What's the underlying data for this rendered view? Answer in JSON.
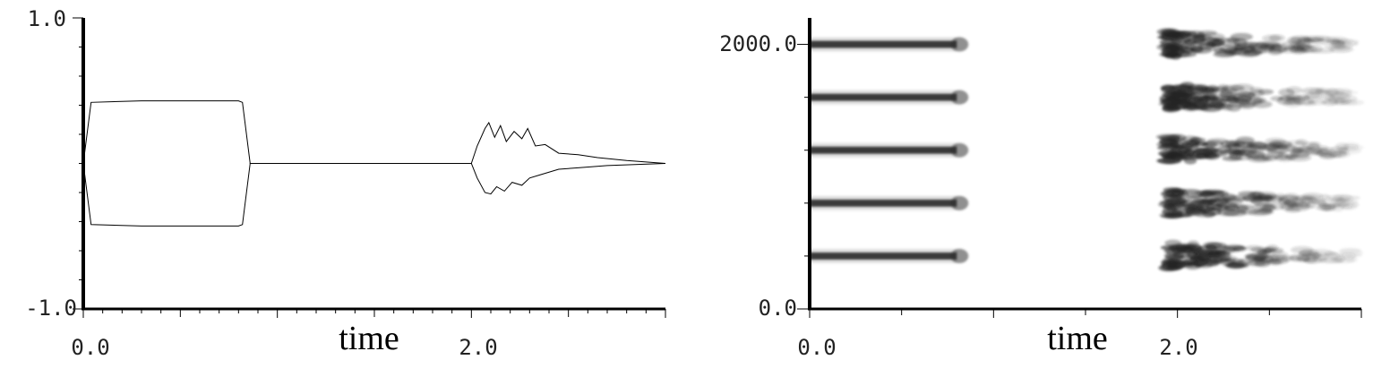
{
  "chart_data": [
    {
      "type": "line",
      "title": "",
      "xlabel": "time",
      "ylabel": "",
      "xlim": [
        0.0,
        3.0
      ],
      "ylim": [
        -1.0,
        1.0
      ],
      "x_tick_labels": [
        "0.0",
        "2.0"
      ],
      "y_tick_labels": [
        "1.0",
        "-1.0"
      ],
      "grid": false,
      "series": [
        {
          "description": "waveform envelope",
          "upper": [
            [
              0.0,
              0.0
            ],
            [
              0.04,
              0.42
            ],
            [
              0.3,
              0.43
            ],
            [
              0.8,
              0.43
            ],
            [
              0.82,
              0.42
            ],
            [
              0.86,
              0.0
            ],
            [
              2.0,
              0.0
            ],
            [
              2.03,
              0.12
            ],
            [
              2.07,
              0.24
            ],
            [
              2.09,
              0.28
            ],
            [
              2.12,
              0.18
            ],
            [
              2.15,
              0.26
            ],
            [
              2.18,
              0.15
            ],
            [
              2.22,
              0.22
            ],
            [
              2.26,
              0.17
            ],
            [
              2.29,
              0.24
            ],
            [
              2.33,
              0.12
            ],
            [
              2.38,
              0.13
            ],
            [
              2.45,
              0.07
            ],
            [
              2.55,
              0.06
            ],
            [
              2.65,
              0.04
            ],
            [
              2.8,
              0.02
            ],
            [
              3.0,
              0.0
            ]
          ],
          "lower": [
            [
              0.0,
              0.0
            ],
            [
              0.04,
              -0.42
            ],
            [
              0.3,
              -0.43
            ],
            [
              0.8,
              -0.43
            ],
            [
              0.82,
              -0.42
            ],
            [
              0.86,
              0.0
            ],
            [
              2.0,
              0.0
            ],
            [
              2.03,
              -0.1
            ],
            [
              2.07,
              -0.2
            ],
            [
              2.1,
              -0.21
            ],
            [
              2.13,
              -0.16
            ],
            [
              2.17,
              -0.19
            ],
            [
              2.21,
              -0.13
            ],
            [
              2.26,
              -0.15
            ],
            [
              2.3,
              -0.1
            ],
            [
              2.35,
              -0.08
            ],
            [
              2.45,
              -0.04
            ],
            [
              2.55,
              -0.03
            ],
            [
              2.7,
              -0.015
            ],
            [
              3.0,
              0.0
            ]
          ]
        }
      ]
    },
    {
      "type": "heatmap",
      "title": "",
      "xlabel": "time",
      "ylabel": "",
      "xlim": [
        0.0,
        3.0
      ],
      "ylim": [
        0.0,
        2200.0
      ],
      "x_tick_labels": [
        "0.0",
        "2.0"
      ],
      "y_tick_labels": [
        "2000.0",
        "0.0"
      ],
      "grid": false,
      "description": "spectrogram with five harmonic bands",
      "bands_hz": [
        2000,
        1600,
        1200,
        800,
        400
      ],
      "segments": [
        {
          "name": "steady tone",
          "start": 0.0,
          "end": 0.8,
          "style": "solid"
        },
        {
          "name": "decaying noisy tone",
          "start": 1.95,
          "end": 2.95,
          "style": "noisy"
        }
      ]
    }
  ]
}
